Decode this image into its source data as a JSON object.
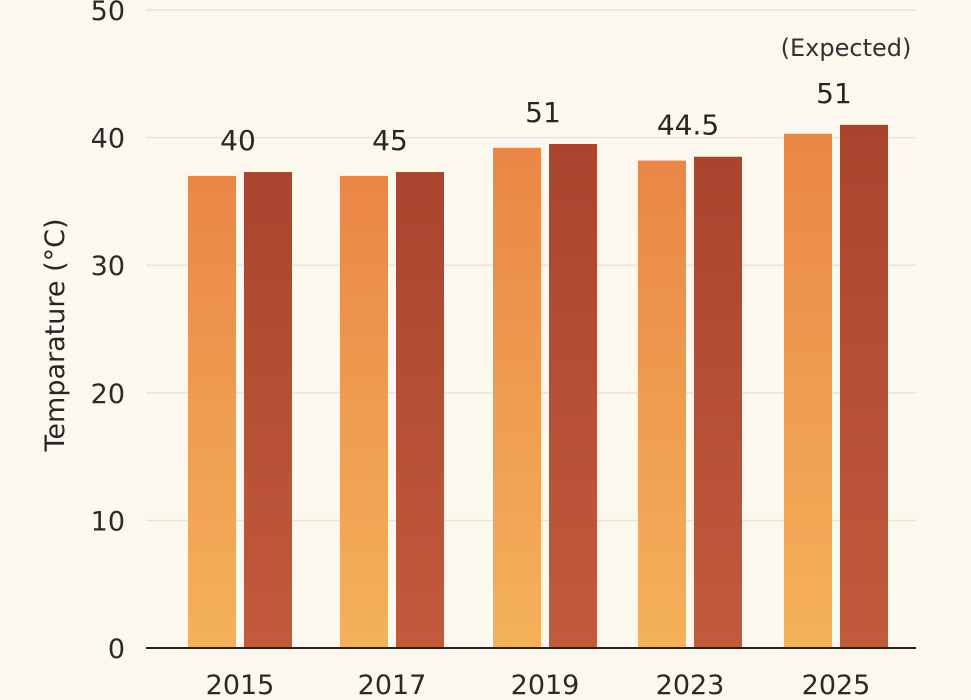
{
  "chart_data": {
    "type": "bar",
    "title": "",
    "xlabel": "",
    "ylabel": "Temparature (°C)",
    "ylim": [
      0,
      50
    ],
    "yticks": [
      "0",
      "10",
      "20",
      "30",
      "40",
      "50"
    ],
    "categories": [
      "2015",
      "2017",
      "2019",
      "2023",
      "2025"
    ],
    "series": [
      {
        "values": [
          37,
          37,
          39.2,
          38.2,
          40.3
        ],
        "color_top": "#ea8646",
        "color_bottom": "#f4b25a"
      },
      {
        "values": [
          37.3,
          37.3,
          39.5,
          38.5,
          41
        ],
        "color_top": "#a9442e",
        "color_bottom": "#c25a3c"
      }
    ],
    "data_labels": [
      "40",
      "45",
      "51",
      "44.5",
      "51"
    ],
    "annotations": [
      {
        "category": "2025",
        "text": "(Expected)"
      }
    ],
    "grid": true,
    "legend": "none"
  }
}
